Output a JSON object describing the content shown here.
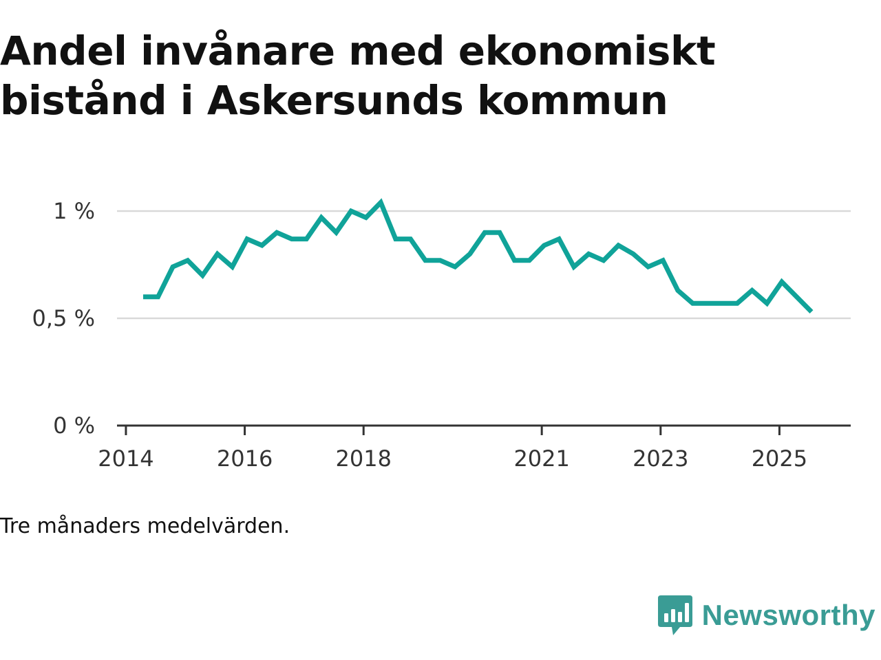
{
  "title": "Andel invånare med ekonomiskt bistånd i Askersunds kommun",
  "note": "Tre månaders medelvärden.",
  "brand": {
    "name": "Newsworthy"
  },
  "colors": {
    "line": "#10a399",
    "brand": "#3a9c95",
    "grid": "#d9d9d9",
    "axis": "#333333"
  },
  "chart_data": {
    "type": "line",
    "title": "Andel invånare med ekonomiskt bistånd i Askersunds kommun",
    "xlabel": "",
    "ylabel": "",
    "xlim": [
      2013.85,
      2026.2
    ],
    "ylim": [
      0,
      1.0
    ],
    "grid": true,
    "y_ticks": [
      {
        "value": 0,
        "label": "0 %"
      },
      {
        "value": 0.5,
        "label": "0,5 %"
      },
      {
        "value": 1.0,
        "label": "1 %"
      }
    ],
    "x_ticks": [
      {
        "value": 2014,
        "label": "2014"
      },
      {
        "value": 2016,
        "label": "2016"
      },
      {
        "value": 2018,
        "label": "2018"
      },
      {
        "value": 2021,
        "label": "2021"
      },
      {
        "value": 2023,
        "label": "2023"
      },
      {
        "value": 2025,
        "label": "2025"
      }
    ],
    "series": [
      {
        "name": "Andel invånare med ekonomiskt bistånd",
        "x": [
          2014.29,
          2014.54,
          2014.79,
          2015.04,
          2015.29,
          2015.54,
          2015.79,
          2016.04,
          2016.29,
          2016.54,
          2016.79,
          2017.04,
          2017.29,
          2017.54,
          2017.79,
          2018.04,
          2018.29,
          2018.54,
          2018.79,
          2019.04,
          2019.29,
          2019.54,
          2019.79,
          2020.04,
          2020.29,
          2020.54,
          2020.79,
          2021.04,
          2021.29,
          2021.54,
          2021.79,
          2022.04,
          2022.29,
          2022.54,
          2022.79,
          2023.04,
          2023.29,
          2023.54,
          2023.79,
          2024.04,
          2024.29,
          2024.54,
          2024.79,
          2025.04,
          2025.29,
          2025.54
        ],
        "values": [
          0.6,
          0.6,
          0.74,
          0.77,
          0.7,
          0.8,
          0.74,
          0.87,
          0.84,
          0.9,
          0.87,
          0.87,
          0.97,
          0.9,
          1.0,
          0.97,
          1.04,
          0.87,
          0.87,
          0.77,
          0.77,
          0.74,
          0.8,
          0.9,
          0.9,
          0.77,
          0.77,
          0.84,
          0.87,
          0.74,
          0.8,
          0.77,
          0.84,
          0.8,
          0.74,
          0.77,
          0.63,
          0.57,
          0.57,
          0.57,
          0.57,
          0.63,
          0.57,
          0.67,
          0.6,
          0.53
        ]
      }
    ]
  }
}
